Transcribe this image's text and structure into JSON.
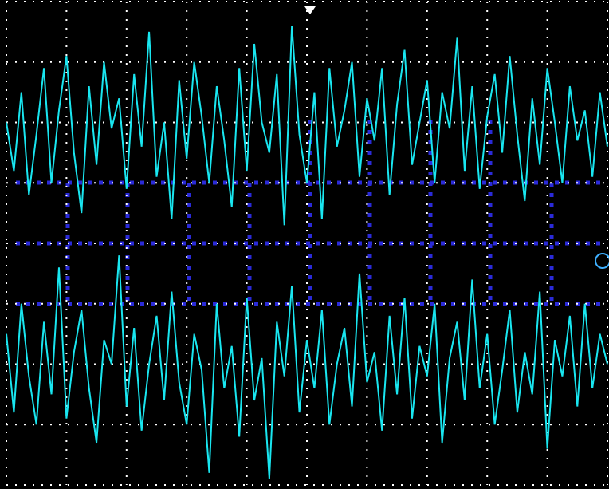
{
  "chart_data": {
    "type": "line",
    "x": [
      0,
      0.125,
      0.25,
      0.375,
      0.5,
      0.625,
      0.75,
      0.875,
      1,
      1.125,
      1.25,
      1.375,
      1.5,
      1.625,
      1.75,
      1.875,
      2,
      2.125,
      2.25,
      2.375,
      2.5,
      2.625,
      2.75,
      2.875,
      3,
      3.125,
      3.25,
      3.375,
      3.5,
      3.625,
      3.75,
      3.875,
      4,
      4.125,
      4.25,
      4.375,
      4.5,
      4.625,
      4.75,
      4.875,
      5,
      5.125,
      5.25,
      5.375,
      5.5,
      5.625,
      5.75,
      5.875,
      6,
      6.125,
      6.25,
      6.375,
      6.5,
      6.625,
      6.75,
      6.875,
      7,
      7.125,
      7.25,
      7.375,
      7.5,
      7.625,
      7.75,
      7.875,
      8,
      8.125,
      8.25,
      8.375,
      8.5,
      8.625,
      8.75,
      8.875,
      9,
      9.125,
      9.25,
      9.375,
      9.5,
      9.625,
      9.75,
      9.875,
      10
    ],
    "series": [
      {
        "color": "#19e6f0",
        "values": [
          2.0,
          1.2,
          2.5,
          0.8,
          1.8,
          2.9,
          1.0,
          2.2,
          3.1,
          1.5,
          0.5,
          2.6,
          1.3,
          3.0,
          1.9,
          2.4,
          0.9,
          2.8,
          1.6,
          3.5,
          1.1,
          2.0,
          0.4,
          2.7,
          1.4,
          3.0,
          2.1,
          1.0,
          2.6,
          1.7,
          0.6,
          2.9,
          1.2,
          3.3,
          2.0,
          1.5,
          2.8,
          0.3,
          3.6,
          1.8,
          1.0,
          2.5,
          0.4,
          2.9,
          1.6,
          2.2,
          3.0,
          1.1,
          2.4,
          1.7,
          2.9,
          0.8,
          2.3,
          3.2,
          1.3,
          2.0,
          2.7,
          1.0,
          2.5,
          1.9,
          3.4,
          1.2,
          2.6,
          0.9,
          2.1,
          2.8,
          1.5,
          3.1,
          1.8,
          0.7,
          2.4,
          1.3,
          2.9,
          2.0,
          1.0,
          2.6,
          1.7,
          2.2,
          1.1,
          2.5,
          1.6
        ]
      },
      {
        "color": "#19e6f0",
        "values": [
          -1.5,
          -2.8,
          -1.0,
          -2.2,
          -3.0,
          -1.3,
          -2.5,
          -0.4,
          -2.9,
          -1.8,
          -1.1,
          -2.4,
          -3.3,
          -1.6,
          -2.0,
          -0.2,
          -2.7,
          -1.4,
          -3.1,
          -2.0,
          -1.2,
          -2.6,
          -0.8,
          -2.3,
          -3.0,
          -1.5,
          -2.1,
          -3.8,
          -1.0,
          -2.4,
          -1.7,
          -3.2,
          -0.9,
          -2.6,
          -1.9,
          -3.9,
          -1.3,
          -2.2,
          -0.7,
          -2.8,
          -1.6,
          -2.4,
          -1.1,
          -3.0,
          -2.0,
          -1.4,
          -2.7,
          -0.5,
          -2.3,
          -1.8,
          -3.1,
          -1.2,
          -2.5,
          -0.9,
          -2.9,
          -1.7,
          -2.2,
          -1.0,
          -3.3,
          -1.9,
          -1.3,
          -2.6,
          -0.6,
          -2.4,
          -1.5,
          -3.0,
          -2.1,
          -1.1,
          -2.8,
          -1.8,
          -2.5,
          -0.8,
          -3.4,
          -1.6,
          -2.2,
          -1.2,
          -2.7,
          -1.0,
          -2.4,
          -1.5,
          -2.0
        ]
      }
    ],
    "xlim": [
      0,
      10
    ],
    "xticks": [
      0,
      1,
      2,
      3,
      4,
      5,
      6,
      7,
      8,
      9,
      10
    ],
    "ylim": [
      -4,
      4
    ],
    "yticks": [
      -4,
      -3,
      -2,
      -1,
      0,
      1,
      2,
      3,
      4
    ],
    "grid": true
  }
}
